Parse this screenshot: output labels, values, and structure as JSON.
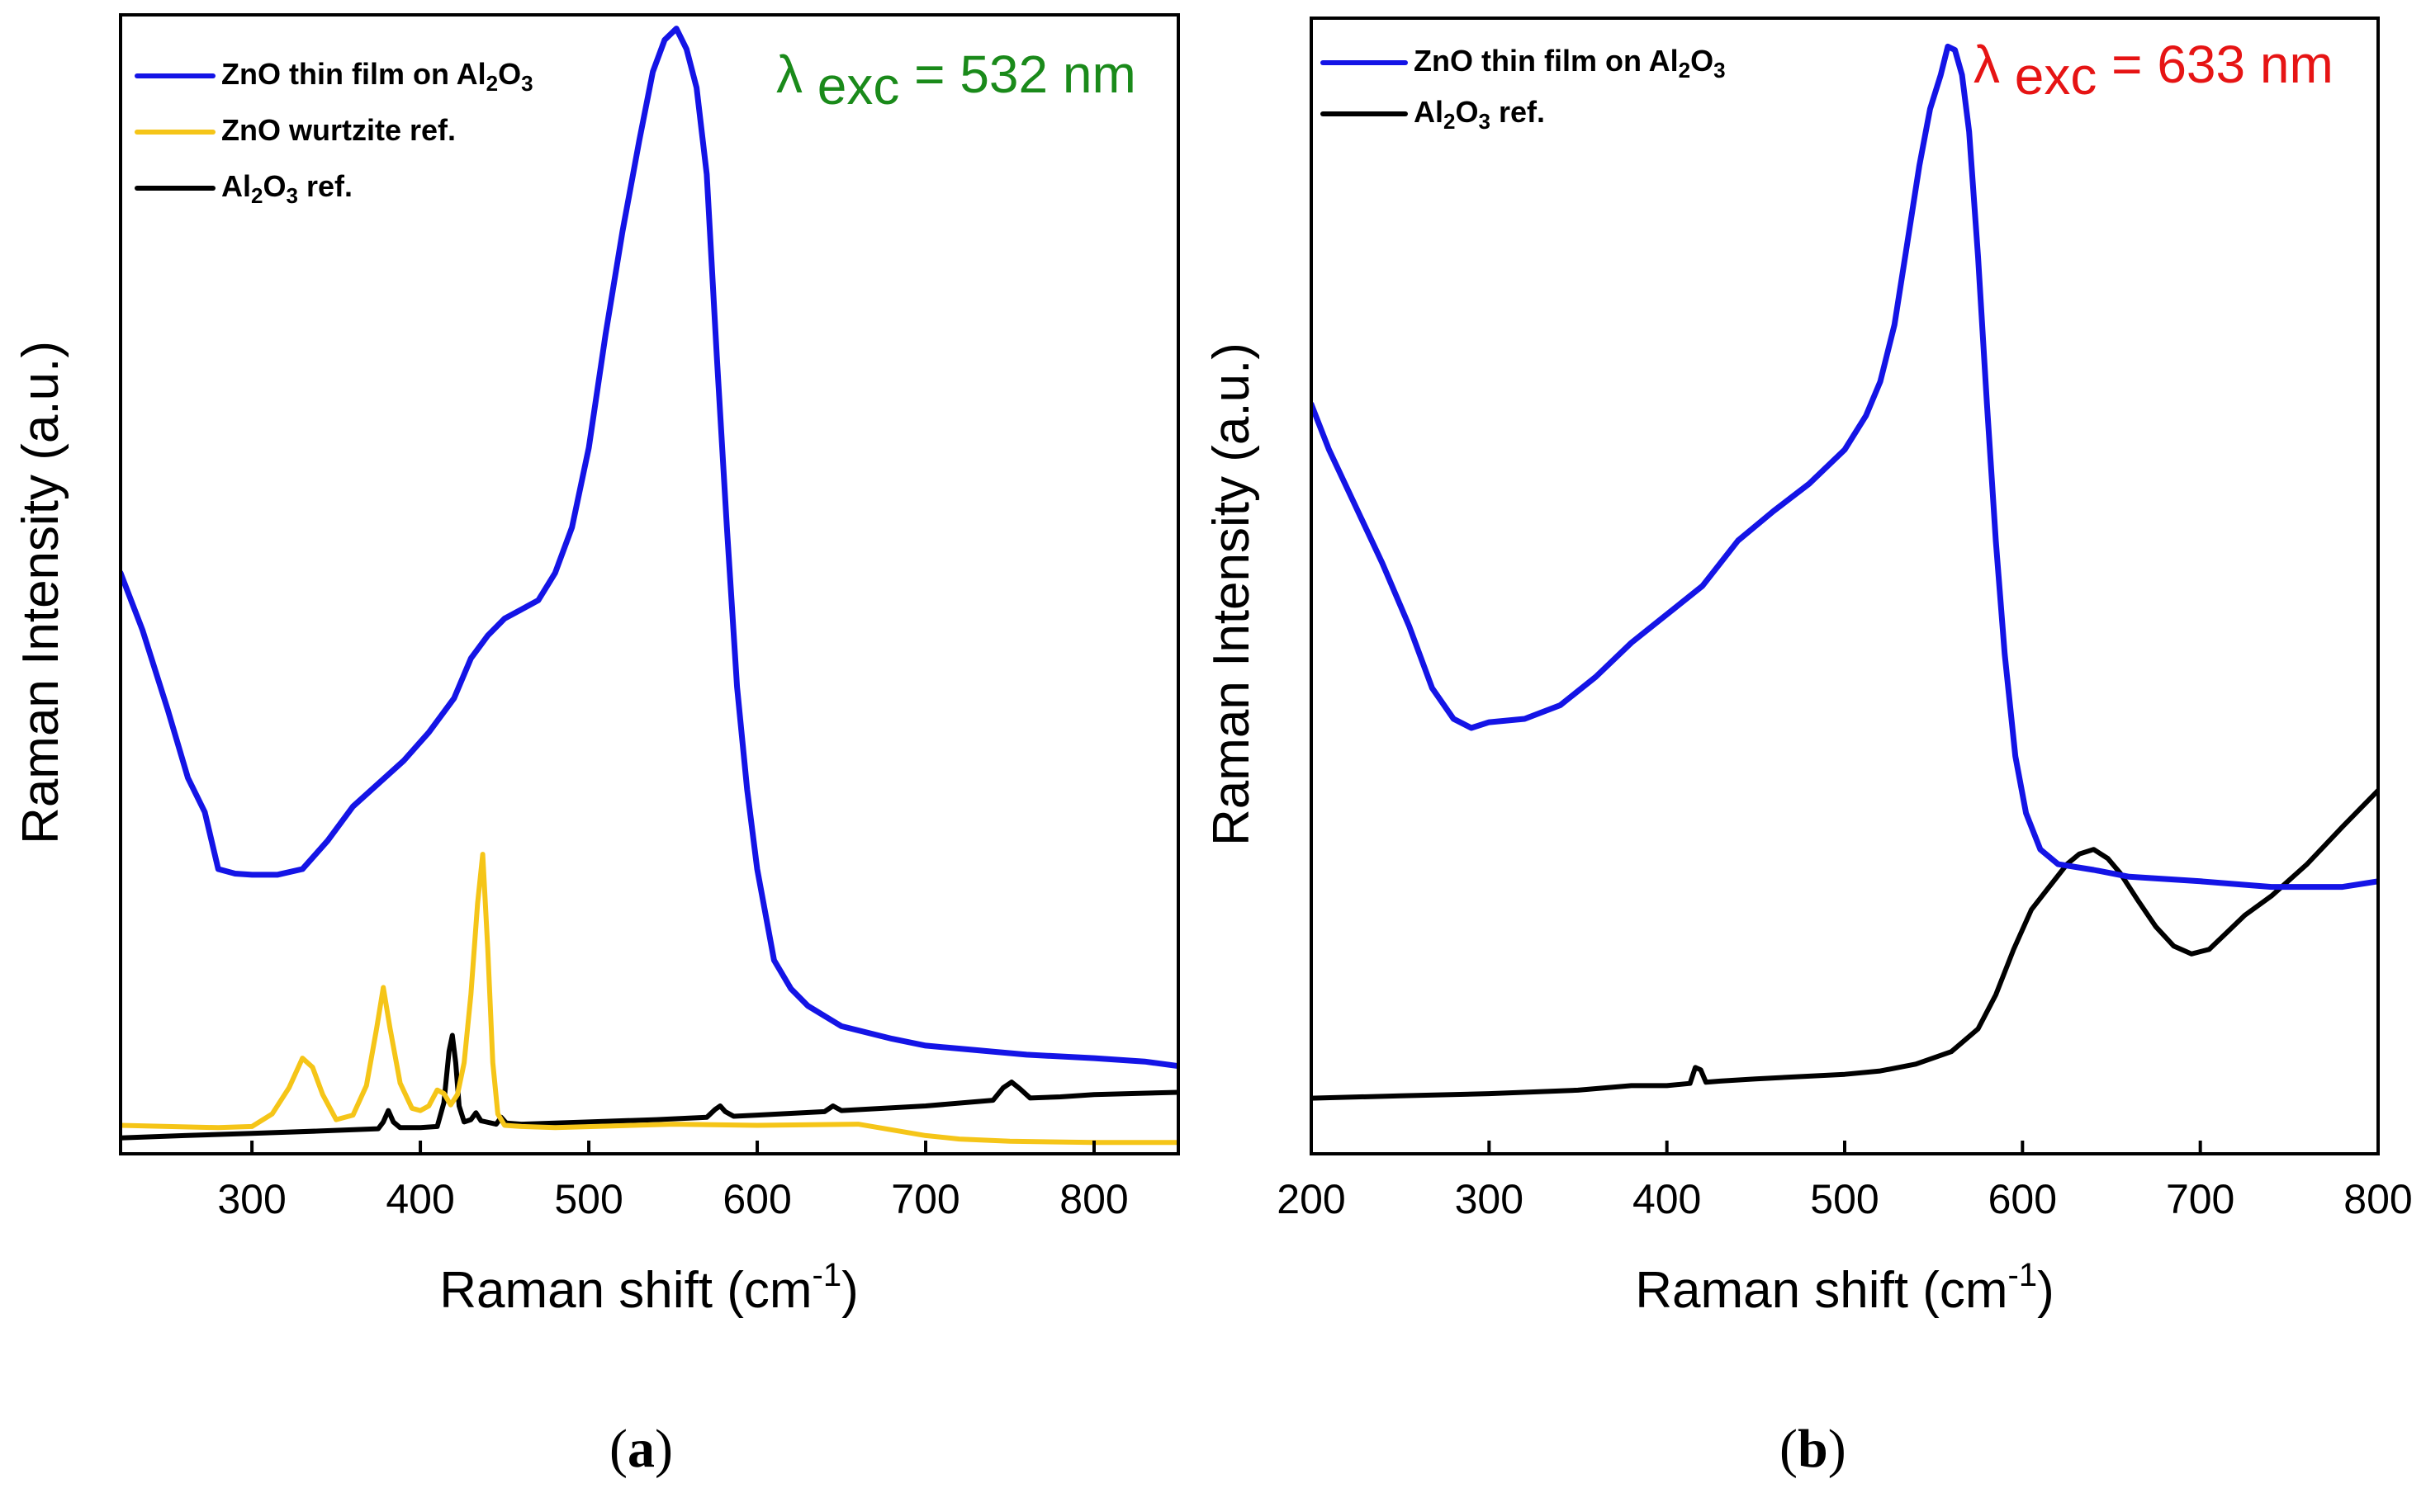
{
  "figure": {
    "panel_a_label": "a",
    "panel_b_label": "b"
  },
  "chart_data": [
    {
      "type": "line",
      "panel": "a",
      "title": "",
      "annotation": {
        "text_prefix": "λ",
        "text_sub": "exc",
        "text_suffix": "= 532 nm",
        "color": "#1a8a1a"
      },
      "xlabel": "Raman shift (cm",
      "xlabel_sup": "-1",
      "xlabel_end": ")",
      "ylabel": "Raman Intensity (a.u.)",
      "xlim": [
        222,
        850
      ],
      "ylim": [
        0,
        100
      ],
      "xticks": [
        300,
        400,
        500,
        600,
        700,
        800
      ],
      "yticks": [],
      "grid": false,
      "legend_position": "top-left",
      "series": [
        {
          "name": "ZnO thin film on Al2O3",
          "legend_html": "ZnO thin film on Al<sub>2</sub>O<sub>3</sub>",
          "color": "#1414e6",
          "width": 7,
          "x": [
            222,
            235,
            250,
            262,
            272,
            280,
            290,
            300,
            315,
            330,
            345,
            360,
            375,
            390,
            405,
            420,
            430,
            440,
            450,
            460,
            470,
            480,
            490,
            500,
            510,
            520,
            530,
            538,
            545,
            552,
            558,
            564,
            570,
            576,
            582,
            588,
            594,
            600,
            610,
            620,
            630,
            650,
            680,
            700,
            730,
            760,
            800,
            830,
            850
          ],
          "y": [
            51,
            46,
            39,
            33,
            30,
            25,
            24.6,
            24.5,
            24.5,
            25,
            27.5,
            30.5,
            32.5,
            34.5,
            37,
            40,
            43.5,
            45.5,
            47,
            47.8,
            48.6,
            51,
            55,
            62,
            72,
            81,
            89,
            95,
            97.8,
            98.8,
            97,
            93.6,
            86,
            70,
            55,
            41,
            32,
            25,
            17,
            14.5,
            13,
            11.2,
            10.1,
            9.5,
            9.1,
            8.7,
            8.4,
            8.1,
            7.7
          ]
        },
        {
          "name": "ZnO wurtzite ref.",
          "legend_html": "ZnO wurtzite ref.",
          "color": "#f5c518",
          "width": 6,
          "x": [
            222,
            280,
            300,
            312,
            322,
            330,
            336,
            342,
            350,
            360,
            368,
            374,
            378,
            382,
            388,
            395,
            400,
            405,
            410,
            414,
            418,
            422,
            426,
            430,
            434,
            437,
            440,
            443,
            446,
            450,
            460,
            480,
            550,
            600,
            660,
            700,
            720,
            750,
            800,
            850
          ],
          "y": [
            2.5,
            2.3,
            2.4,
            3.5,
            5.8,
            8.4,
            7.6,
            5.2,
            3,
            3.4,
            6,
            11,
            14.6,
            11,
            6.2,
            4,
            3.8,
            4.2,
            5.6,
            5.3,
            4.3,
            5.2,
            8,
            14,
            22,
            26.3,
            18,
            8,
            3.5,
            2.5,
            2.4,
            2.3,
            2.6,
            2.5,
            2.6,
            1.6,
            1.3,
            1.1,
            1.0,
            1.0
          ]
        },
        {
          "name": "Al2O3 ref.",
          "legend_html": "Al<sub>2</sub>O<sub>3</sub> ref.",
          "color": "#000000",
          "width": 6,
          "x": [
            222,
            260,
            300,
            340,
            375,
            378,
            381,
            384,
            388,
            400,
            410,
            414,
            417,
            419,
            421,
            423,
            426,
            430,
            433,
            436,
            445,
            448,
            451,
            460,
            500,
            540,
            570,
            575,
            578,
            581,
            586,
            600,
            640,
            645,
            650,
            700,
            740,
            746,
            751,
            756,
            762,
            780,
            800,
            850
          ],
          "y": [
            1.4,
            1.6,
            1.8,
            2.0,
            2.2,
            2.8,
            3.8,
            2.8,
            2.3,
            2.3,
            2.4,
            4.5,
            9,
            10.4,
            8,
            4.2,
            2.8,
            3.0,
            3.6,
            2.9,
            2.6,
            3.2,
            2.7,
            2.6,
            2.8,
            3.0,
            3.2,
            3.9,
            4.2,
            3.7,
            3.3,
            3.4,
            3.7,
            4.2,
            3.8,
            4.2,
            4.7,
            5.8,
            6.3,
            5.7,
            4.9,
            5.0,
            5.2,
            5.4
          ]
        }
      ]
    },
    {
      "type": "line",
      "panel": "b",
      "title": "",
      "annotation": {
        "text_prefix": "λ",
        "text_sub": "exc",
        "text_suffix": "= 633 nm",
        "color": "#e61414"
      },
      "xlabel": "Raman shift (cm",
      "xlabel_sup": "-1",
      "xlabel_end": ")",
      "ylabel": "Raman Intensity (a.u.)",
      "xlim": [
        200,
        800
      ],
      "ylim": [
        0,
        100
      ],
      "xticks": [
        200,
        300,
        400,
        500,
        600,
        700,
        800
      ],
      "yticks": [],
      "grid": false,
      "legend_position": "top-left",
      "series": [
        {
          "name": "ZnO thin film on Al2O3",
          "legend_html": "ZnO thin film on Al<sub>2</sub>O<sub>3</sub>",
          "color": "#1414e6",
          "width": 7,
          "x": [
            200,
            210,
            225,
            240,
            255,
            268,
            280,
            290,
            300,
            320,
            340,
            360,
            380,
            400,
            420,
            440,
            460,
            480,
            500,
            512,
            520,
            528,
            535,
            542,
            548,
            554,
            558,
            562,
            566,
            570,
            575,
            580,
            585,
            590,
            596,
            602,
            610,
            620,
            640,
            660,
            700,
            740,
            780,
            800
          ],
          "y": [
            66,
            62,
            57,
            52,
            46.5,
            41,
            38.3,
            37.5,
            38,
            38.3,
            39.5,
            42,
            45,
            47.5,
            50,
            54,
            56.6,
            59,
            62,
            65,
            68,
            73,
            80,
            87,
            92,
            95,
            97.5,
            97.2,
            95,
            90,
            79,
            66,
            54,
            44,
            35,
            30,
            26.8,
            25.5,
            25,
            24.4,
            24,
            23.5,
            23.5,
            24
          ]
        },
        {
          "name": "Al2O3 ref.",
          "legend_html": "Al<sub>2</sub>O<sub>3</sub> ref.",
          "color": "#000000",
          "width": 6,
          "x": [
            200,
            250,
            300,
            350,
            380,
            400,
            413,
            416,
            419,
            422,
            430,
            450,
            500,
            520,
            540,
            560,
            575,
            585,
            595,
            605,
            615,
            625,
            632,
            640,
            648,
            655,
            665,
            675,
            685,
            695,
            705,
            715,
            725,
            740,
            760,
            780,
            800
          ],
          "y": [
            4.9,
            5.1,
            5.3,
            5.6,
            6.0,
            6.0,
            6.2,
            7.6,
            7.4,
            6.3,
            6.4,
            6.6,
            7.0,
            7.3,
            7.9,
            9.0,
            11,
            14,
            18,
            21.5,
            23.5,
            25.5,
            26.4,
            26.8,
            26,
            24.7,
            22.3,
            20,
            18.3,
            17.6,
            18,
            19.5,
            21,
            22.7,
            25.5,
            28.8,
            32
          ]
        }
      ]
    }
  ]
}
